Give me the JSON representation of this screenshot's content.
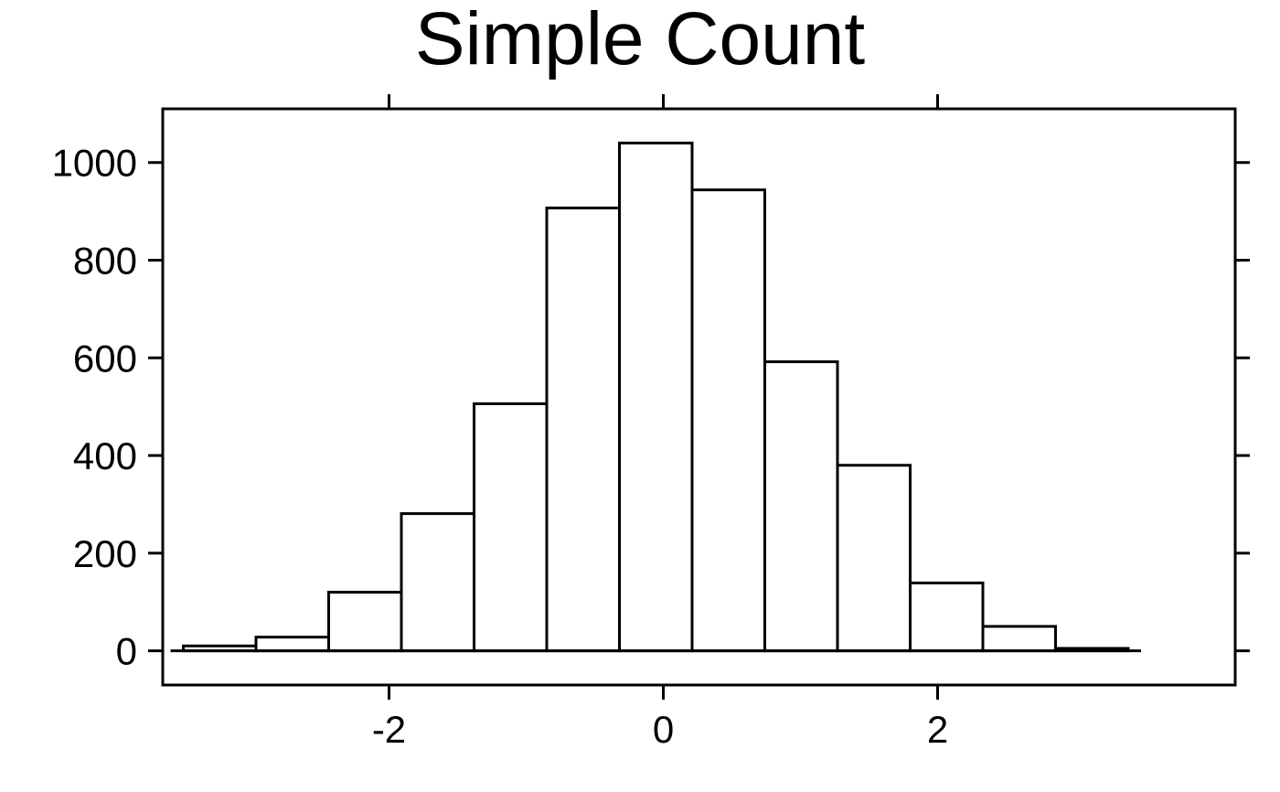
{
  "chart_data": {
    "type": "bar",
    "title": "Simple Count",
    "xlabel": "",
    "ylabel": "",
    "xlim": [
      -3.65,
      4.17
    ],
    "ylim": [
      -70,
      1110
    ],
    "grid": false,
    "x_ticks": [
      {
        "value": -2,
        "label": "-2"
      },
      {
        "value": 0,
        "label": "0"
      },
      {
        "value": 2,
        "label": "2"
      }
    ],
    "y_ticks": [
      {
        "value": 0,
        "label": "0"
      },
      {
        "value": 200,
        "label": "200"
      },
      {
        "value": 400,
        "label": "400"
      },
      {
        "value": 600,
        "label": "600"
      },
      {
        "value": 800,
        "label": "800"
      },
      {
        "value": 1000,
        "label": "1000"
      }
    ],
    "bins": [
      {
        "x0": -3.5,
        "x1": -2.97,
        "count": 10
      },
      {
        "x0": -2.97,
        "x1": -2.44,
        "count": 28
      },
      {
        "x0": -2.44,
        "x1": -1.91,
        "count": 120
      },
      {
        "x0": -1.91,
        "x1": -1.38,
        "count": 281
      },
      {
        "x0": -1.38,
        "x1": -0.85,
        "count": 506
      },
      {
        "x0": -0.85,
        "x1": -0.32,
        "count": 907
      },
      {
        "x0": -0.32,
        "x1": 0.21,
        "count": 1040
      },
      {
        "x0": 0.21,
        "x1": 0.74,
        "count": 944
      },
      {
        "x0": 0.74,
        "x1": 1.27,
        "count": 592
      },
      {
        "x0": 1.27,
        "x1": 1.8,
        "count": 380
      },
      {
        "x0": 1.8,
        "x1": 2.33,
        "count": 139
      },
      {
        "x0": 2.33,
        "x1": 2.86,
        "count": 50
      },
      {
        "x0": 2.86,
        "x1": 3.39,
        "count": 5
      }
    ]
  }
}
